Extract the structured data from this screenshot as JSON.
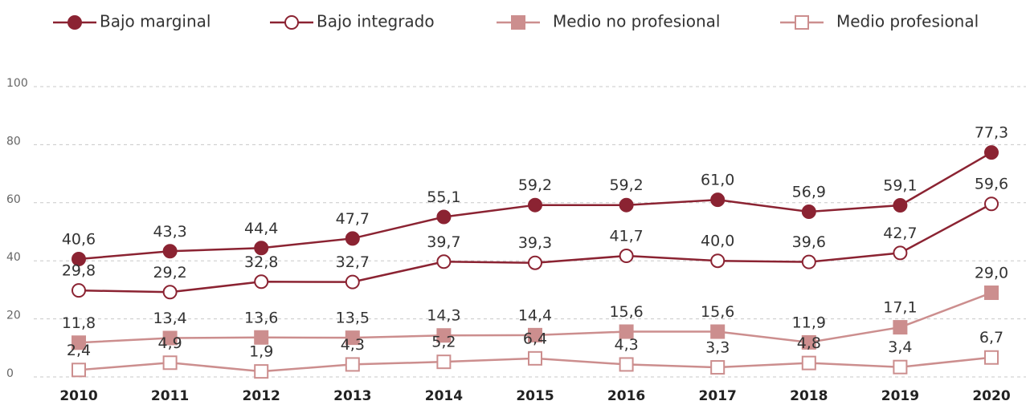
{
  "chart_data": {
    "type": "line",
    "categories": [
      "2010",
      "2011",
      "2012",
      "2013",
      "2014",
      "2015",
      "2016",
      "2017",
      "2018",
      "2019",
      "2020"
    ],
    "ylim": [
      0,
      100
    ],
    "yticks": [
      0,
      20,
      40,
      60,
      80,
      100
    ],
    "grid": true,
    "legend": "top",
    "series": [
      {
        "name": "Bajo marginal",
        "color": "#8b2332",
        "marker": "circle",
        "filled": true,
        "values": [
          40.6,
          43.3,
          44.4,
          47.7,
          55.1,
          59.2,
          59.2,
          61.0,
          56.9,
          59.1,
          77.3
        ],
        "value_labels": [
          "40,6",
          "43,3",
          "44,4",
          "47,7",
          "55,1",
          "59,2",
          "59,2",
          "61,0",
          "56,9",
          "59,1",
          "77,3"
        ]
      },
      {
        "name": "Bajo integrado",
        "color": "#8b2332",
        "marker": "circle",
        "filled": false,
        "values": [
          29.8,
          29.2,
          32.8,
          32.7,
          39.7,
          39.3,
          41.7,
          40.0,
          39.6,
          42.7,
          59.6
        ],
        "value_labels": [
          "29,8",
          "29,2",
          "32,8",
          "32,7",
          "39,7",
          "39,3",
          "41,7",
          "40,0",
          "39,6",
          "42,7",
          "59,6"
        ]
      },
      {
        "name": "Medio no profesional",
        "color": "#cc8e8e",
        "marker": "square",
        "filled": true,
        "values": [
          11.8,
          13.4,
          13.6,
          13.5,
          14.3,
          14.4,
          15.6,
          15.6,
          11.9,
          17.1,
          29.0
        ],
        "value_labels": [
          "11,8",
          "13,4",
          "13,6",
          "13,5",
          "14,3",
          "14,4",
          "15,6",
          "15,6",
          "11,9",
          "17,1",
          "29,0"
        ]
      },
      {
        "name": "Medio profesional",
        "color": "#cc8e8e",
        "marker": "square",
        "filled": false,
        "values": [
          2.4,
          4.9,
          1.9,
          4.3,
          5.2,
          6.4,
          4.3,
          3.3,
          4.8,
          3.4,
          6.7
        ],
        "value_labels": [
          "2,4",
          "4,9",
          "1,9",
          "4,3",
          "5,2",
          "6,4",
          "4,3",
          "3,3",
          "4,8",
          "3,4",
          "6,7"
        ]
      }
    ]
  }
}
